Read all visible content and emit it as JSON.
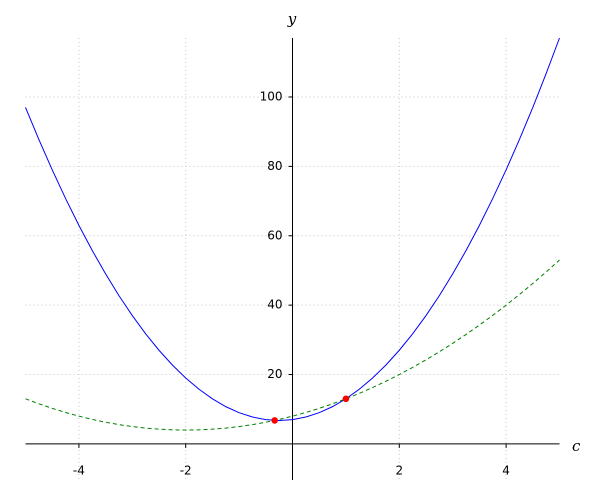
{
  "chart_data": {
    "type": "line",
    "x_label": "c",
    "y_label": "y",
    "xlim": [
      -5,
      5
    ],
    "ylim": [
      -10.4,
      117
    ],
    "xticks": [
      -4,
      -2,
      2,
      4
    ],
    "yticks": [
      20,
      40,
      60,
      80,
      100
    ],
    "grid": true,
    "x": [
      -5,
      -4.75,
      -4.5,
      -4.25,
      -4,
      -3.75,
      -3.5,
      -3.25,
      -3,
      -2.75,
      -2.5,
      -2.25,
      -2,
      -1.75,
      -1.5,
      -1.25,
      -1,
      -0.75,
      -0.5,
      -0.25,
      0,
      0.25,
      0.5,
      0.75,
      1,
      1.25,
      1.5,
      1.75,
      2,
      2.25,
      2.5,
      2.75,
      3,
      3.25,
      3.5,
      3.75,
      4,
      4.25,
      4.5,
      4.75,
      5
    ],
    "series": [
      {
        "color": "#0000ff",
        "dashed": false,
        "values": [
          97,
          87.75,
          79,
          70.75,
          63,
          55.75,
          49,
          42.75,
          37,
          31.75,
          27,
          22.75,
          19,
          15.75,
          13,
          10.75,
          9,
          7.75,
          7,
          6.75,
          7,
          7.75,
          9,
          10.75,
          13,
          15.75,
          19,
          22.75,
          27,
          31.75,
          37,
          42.75,
          49,
          55.75,
          63,
          70.75,
          79,
          87.75,
          97,
          106.75,
          117
        ]
      },
      {
        "color": "#008000",
        "dashed": true,
        "values": [
          13,
          11.5625,
          10.25,
          9.0625,
          8,
          7.0625,
          6.25,
          5.5625,
          5,
          4.5625,
          4.25,
          4.0625,
          4,
          4.0625,
          4.25,
          4.5625,
          5,
          5.5625,
          6.25,
          7.0625,
          8,
          9.0625,
          10.25,
          11.5625,
          13,
          14.5625,
          16.25,
          18.0625,
          20,
          22.0625,
          24.25,
          26.5625,
          29,
          31.5625,
          34.25,
          37.0625,
          40,
          43.0625,
          46.25,
          49.5625,
          53
        ]
      }
    ],
    "points": {
      "color": "#ff0000",
      "x": [
        -0.3333,
        1
      ],
      "y": [
        6.7778,
        13
      ]
    }
  }
}
